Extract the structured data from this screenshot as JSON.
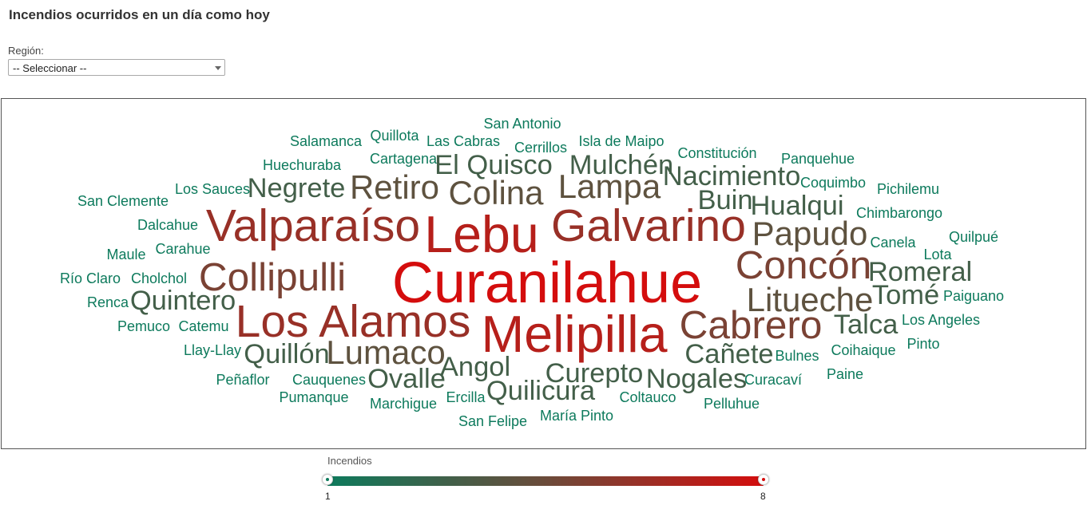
{
  "page": {
    "title": "Incendios ocurridos en un día como hoy"
  },
  "filter": {
    "label": "Región:",
    "selected": "-- Seleccionar --"
  },
  "legend": {
    "title": "Incendios",
    "min": "1",
    "max": "8",
    "color_min": "#0d7a5c",
    "color_mid": "#6b4b3a",
    "color_max": "#d40d0d"
  },
  "chart_data": {
    "type": "wordcloud",
    "value_range": [
      1,
      8
    ],
    "words": [
      {
        "text": "Curanilahue",
        "value": 8
      },
      {
        "text": "Melipilla",
        "value": 7
      },
      {
        "text": "Lebu",
        "value": 7
      },
      {
        "text": "Valparaíso",
        "value": 6
      },
      {
        "text": "Galvarino",
        "value": 6
      },
      {
        "text": "Los Alamos",
        "value": 6
      },
      {
        "text": "Collipulli",
        "value": 5
      },
      {
        "text": "Concón",
        "value": 5
      },
      {
        "text": "Cabrero",
        "value": 5
      },
      {
        "text": "Colina",
        "value": 4
      },
      {
        "text": "Retiro",
        "value": 4
      },
      {
        "text": "Lampa",
        "value": 4
      },
      {
        "text": "Papudo",
        "value": 4
      },
      {
        "text": "Litueche",
        "value": 4
      },
      {
        "text": "Lumaco",
        "value": 4
      },
      {
        "text": "Negrete",
        "value": 3
      },
      {
        "text": "El Quisco",
        "value": 3
      },
      {
        "text": "Mulchén",
        "value": 3
      },
      {
        "text": "Nacimiento",
        "value": 3
      },
      {
        "text": "Buin",
        "value": 3
      },
      {
        "text": "Hualqui",
        "value": 3
      },
      {
        "text": "Romeral",
        "value": 3
      },
      {
        "text": "Tomé",
        "value": 3
      },
      {
        "text": "Talca",
        "value": 3
      },
      {
        "text": "Cañete",
        "value": 3
      },
      {
        "text": "Quintero",
        "value": 3
      },
      {
        "text": "Quillón",
        "value": 3
      },
      {
        "text": "Angol",
        "value": 3
      },
      {
        "text": "Ovalle",
        "value": 3
      },
      {
        "text": "Curepto",
        "value": 3
      },
      {
        "text": "Nogales",
        "value": 3
      },
      {
        "text": "Quilicura",
        "value": 3
      },
      {
        "text": "San Antonio",
        "value": 1
      },
      {
        "text": "Salamanca",
        "value": 1
      },
      {
        "text": "Quillota",
        "value": 1
      },
      {
        "text": "Las Cabras",
        "value": 1
      },
      {
        "text": "Cerrillos",
        "value": 1
      },
      {
        "text": "Isla de Maipo",
        "value": 1
      },
      {
        "text": "Constitución",
        "value": 1
      },
      {
        "text": "Panquehue",
        "value": 1
      },
      {
        "text": "Huechuraba",
        "value": 1
      },
      {
        "text": "Cartagena",
        "value": 1
      },
      {
        "text": "Coquimbo",
        "value": 1
      },
      {
        "text": "Pichilemu",
        "value": 1
      },
      {
        "text": "Los Sauces",
        "value": 1
      },
      {
        "text": "San Clemente",
        "value": 1
      },
      {
        "text": "Chimbarongo",
        "value": 1
      },
      {
        "text": "Dalcahue",
        "value": 1
      },
      {
        "text": "Canela",
        "value": 1
      },
      {
        "text": "Quilpué",
        "value": 1
      },
      {
        "text": "Carahue",
        "value": 1
      },
      {
        "text": "Maule",
        "value": 1
      },
      {
        "text": "Lota",
        "value": 1
      },
      {
        "text": "Río Claro",
        "value": 1
      },
      {
        "text": "Cholchol",
        "value": 1
      },
      {
        "text": "Renca",
        "value": 1
      },
      {
        "text": "Paiguano",
        "value": 1
      },
      {
        "text": "Pemuco",
        "value": 1
      },
      {
        "text": "Catemu",
        "value": 1
      },
      {
        "text": "Los Angeles",
        "value": 1
      },
      {
        "text": "Llay-Llay",
        "value": 1
      },
      {
        "text": "Bulnes",
        "value": 1
      },
      {
        "text": "Coihaique",
        "value": 1
      },
      {
        "text": "Pinto",
        "value": 1
      },
      {
        "text": "Peñaflor",
        "value": 1
      },
      {
        "text": "Cauquenes",
        "value": 1
      },
      {
        "text": "Curacaví",
        "value": 1
      },
      {
        "text": "Paine",
        "value": 1
      },
      {
        "text": "Pumanque",
        "value": 1
      },
      {
        "text": "Ercilla",
        "value": 1
      },
      {
        "text": "Coltauco",
        "value": 1
      },
      {
        "text": "Marchigue",
        "value": 1
      },
      {
        "text": "Pelluhue",
        "value": 1
      },
      {
        "text": "San Felipe",
        "value": 1
      },
      {
        "text": "María Pinto",
        "value": 1
      }
    ]
  }
}
